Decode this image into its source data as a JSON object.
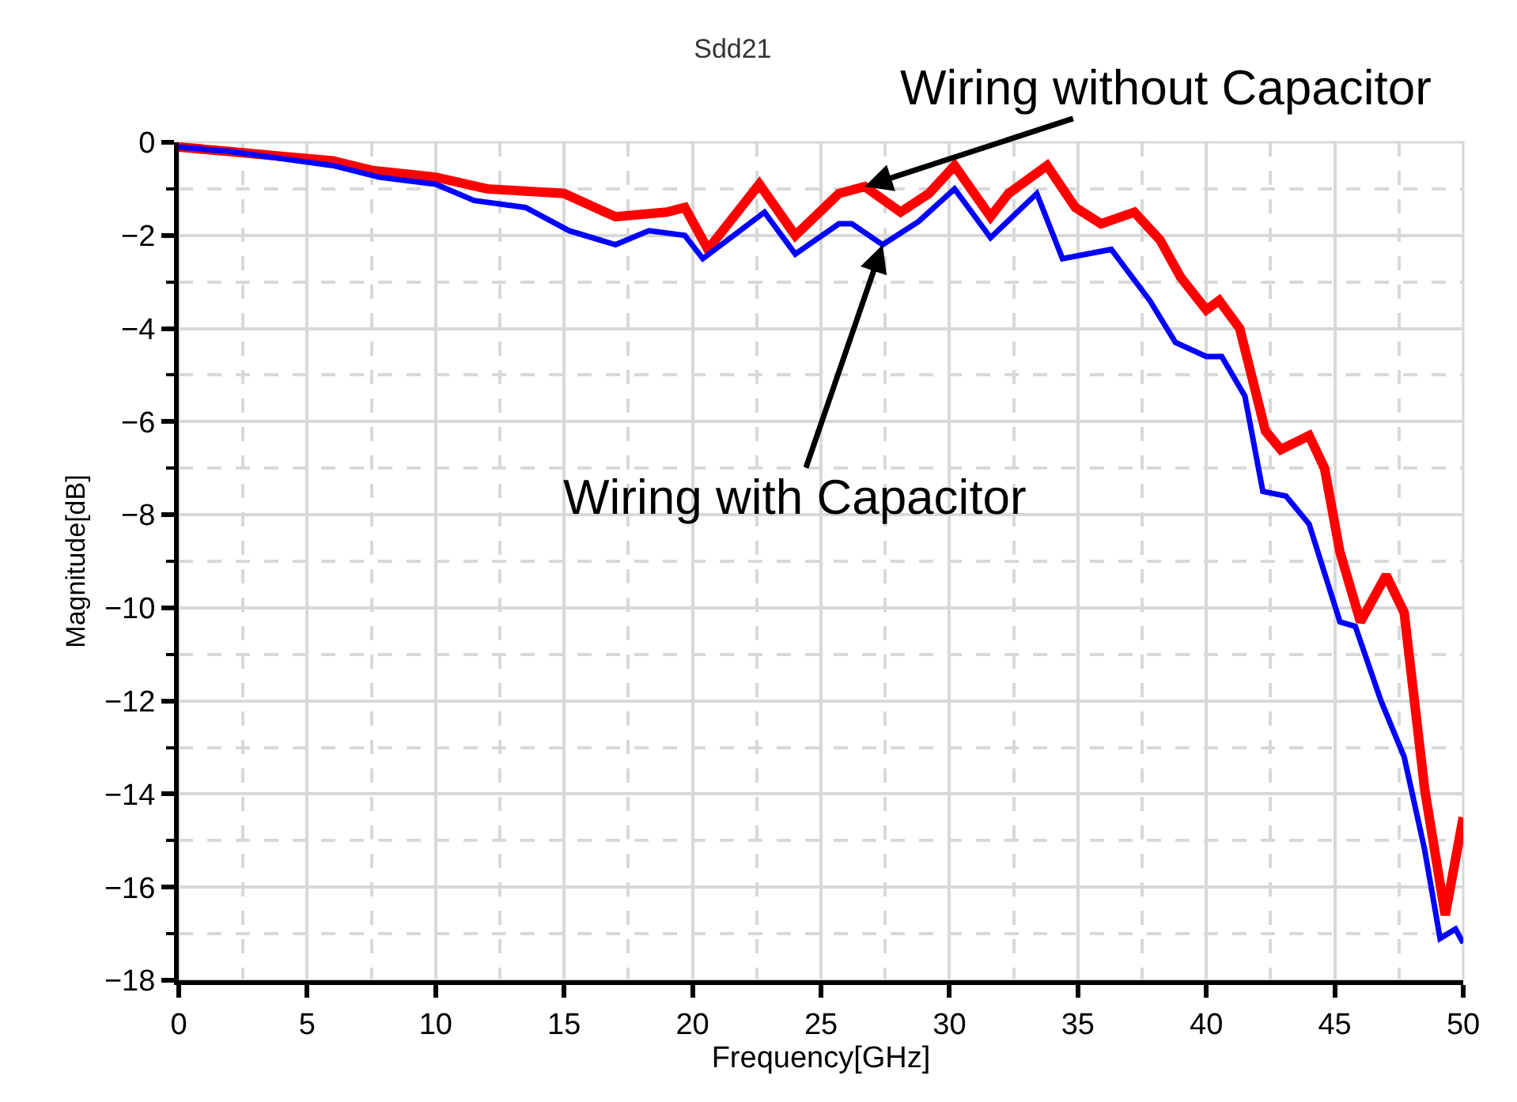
{
  "chart_data": {
    "type": "line",
    "title": "Sdd21",
    "xlabel": "Frequency[GHz]",
    "ylabel": "Magnitude[dB]",
    "xlim": [
      0,
      50
    ],
    "xticks": [
      0,
      5,
      10,
      15,
      20,
      25,
      30,
      35,
      40,
      45,
      50
    ],
    "ylim": [
      -18,
      0
    ],
    "yticks": [
      -18,
      -16,
      -14,
      -12,
      -10,
      -8,
      -6,
      -4,
      -2,
      0
    ],
    "grid": true,
    "marker": "none",
    "line_style": "solid",
    "annotations": [
      {
        "text": "Wiring without Capacitor",
        "x": 26.7,
        "y": -0.95
      },
      {
        "text": "Wiring with Capacitor",
        "x": 27.4,
        "y": -2.2
      }
    ],
    "series": [
      {
        "color": "#ff0000",
        "x": [
          0,
          2,
          4,
          6,
          7.5,
          10,
          12,
          15,
          17,
          19,
          19.7,
          20.6,
          22.6,
          24,
          25.7,
          26.7,
          28.1,
          29.2,
          30.2,
          31.6,
          32.3,
          33.8,
          34.9,
          35.9,
          37.2,
          38.2,
          39,
          40,
          40.5,
          41.3,
          42.3,
          42.9,
          44,
          44.6,
          45.2,
          46,
          47,
          47.7,
          48.5,
          49.3,
          50
        ],
        "values": [
          -0.1,
          -0.2,
          -0.3,
          -0.4,
          -0.6,
          -0.75,
          -1.0,
          -1.1,
          -1.6,
          -1.5,
          -1.4,
          -2.3,
          -0.9,
          -2.0,
          -1.1,
          -0.95,
          -1.5,
          -1.1,
          -0.5,
          -1.6,
          -1.1,
          -0.5,
          -1.4,
          -1.75,
          -1.5,
          -2.1,
          -2.9,
          -3.6,
          -3.4,
          -4.0,
          -6.2,
          -6.6,
          -6.3,
          -7.0,
          -8.8,
          -10.3,
          -9.3,
          -10.1,
          -13.9,
          -16.6,
          -14.5
        ]
      },
      {
        "color": "#0000ff",
        "x": [
          0,
          2,
          4,
          6,
          7.8,
          10,
          11.5,
          13.5,
          15.2,
          17,
          18.3,
          19.7,
          20.4,
          22.8,
          24,
          25.7,
          26.2,
          27.4,
          28.8,
          30.2,
          31.6,
          33.4,
          34.4,
          36.3,
          37.8,
          38.8,
          40,
          40.6,
          41.5,
          42.2,
          43.1,
          44,
          45.2,
          45.8,
          46.8,
          47.7,
          48.5,
          49.1,
          49.7,
          50
        ],
        "values": [
          -0.1,
          -0.2,
          -0.35,
          -0.5,
          -0.75,
          -0.9,
          -1.25,
          -1.4,
          -1.9,
          -2.2,
          -1.9,
          -2.0,
          -2.5,
          -1.5,
          -2.4,
          -1.75,
          -1.75,
          -2.2,
          -1.7,
          -1.0,
          -2.05,
          -1.1,
          -2.5,
          -2.3,
          -3.4,
          -4.3,
          -4.6,
          -4.6,
          -5.45,
          -7.5,
          -7.6,
          -8.2,
          -10.3,
          -10.4,
          -12.0,
          -13.2,
          -15.2,
          -17.1,
          -16.9,
          -17.2
        ]
      }
    ]
  }
}
